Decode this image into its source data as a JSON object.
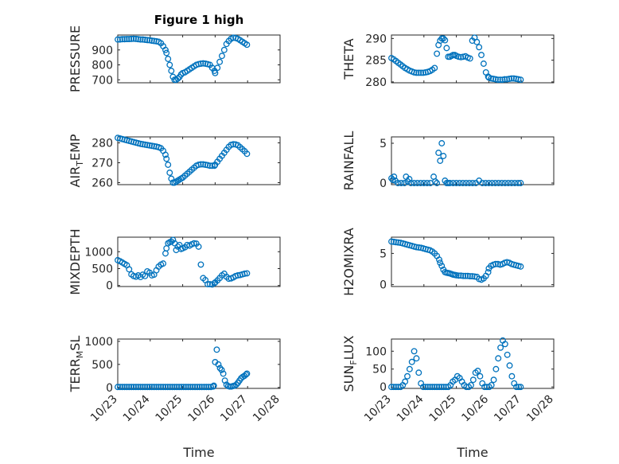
{
  "colors": {
    "marker": "#0072BD",
    "axis": "#262626",
    "grid": "#c8c8c8"
  },
  "xticks": [
    "10/23",
    "10/24",
    "10/25",
    "10/26",
    "10/27",
    "10/28"
  ],
  "xlabel": "Time",
  "chart_data": [
    {
      "type": "scatter",
      "title": "Figure 1 high",
      "ylabel": "PRESSURE",
      "ylabel_sub": "",
      "ylabel_tail": "",
      "ylim": [
        680,
        1000
      ],
      "yticks": [
        700,
        800,
        900
      ],
      "yticklabels": [
        "700",
        "800",
        "900"
      ],
      "grid": true,
      "x": [
        0,
        0.07,
        0.14,
        0.21,
        0.28,
        0.35,
        0.42,
        0.49,
        0.56,
        0.63,
        0.7,
        0.77,
        0.84,
        0.91,
        0.98,
        1.05,
        1.12,
        1.19,
        1.26,
        1.33,
        1.4,
        1.47,
        1.5,
        1.55,
        1.6,
        1.65,
        1.7,
        1.75,
        1.8,
        1.85,
        1.9,
        1.95,
        2.0,
        2.07,
        2.14,
        2.21,
        2.28,
        2.35,
        2.42,
        2.49,
        2.56,
        2.63,
        2.7,
        2.77,
        2.84,
        2.91,
        2.98,
        3.0,
        3.07,
        3.14,
        3.21,
        3.28,
        3.35,
        3.42,
        3.49,
        3.56,
        3.63,
        3.7,
        3.77,
        3.84,
        3.91,
        3.98
      ],
      "y": [
        970,
        970,
        972,
        972,
        973,
        973,
        974,
        975,
        974,
        972,
        970,
        970,
        968,
        966,
        965,
        962,
        960,
        958,
        955,
        945,
        925,
        900,
        880,
        840,
        800,
        760,
        720,
        700,
        700,
        708,
        718,
        735,
        745,
        750,
        760,
        770,
        780,
        790,
        800,
        805,
        808,
        810,
        808,
        805,
        800,
        780,
        760,
        745,
        780,
        820,
        860,
        900,
        940,
        960,
        975,
        982,
        980,
        975,
        965,
        955,
        945,
        935
      ]
    },
    {
      "type": "scatter",
      "title": "",
      "ylabel": "THETA",
      "ylabel_sub": "",
      "ylabel_tail": "",
      "ylim": [
        279.8,
        290.8
      ],
      "yticks": [
        280,
        285,
        290
      ],
      "yticklabels": [
        "280",
        "285",
        "290"
      ],
      "grid": true,
      "x": [
        0,
        0.07,
        0.14,
        0.21,
        0.28,
        0.35,
        0.42,
        0.49,
        0.56,
        0.63,
        0.7,
        0.77,
        0.84,
        0.91,
        0.98,
        1.05,
        1.12,
        1.19,
        1.26,
        1.33,
        1.4,
        1.45,
        1.5,
        1.55,
        1.6,
        1.65,
        1.7,
        1.75,
        1.8,
        1.85,
        1.9,
        1.95,
        2.0,
        2.07,
        2.14,
        2.21,
        2.28,
        2.35,
        2.42,
        2.49,
        2.56,
        2.63,
        2.7,
        2.77,
        2.84,
        2.91,
        2.98,
        3.0,
        3.07,
        3.14,
        3.21,
        3.28,
        3.35,
        3.42,
        3.49,
        3.56,
        3.63,
        3.7,
        3.77,
        3.84,
        3.91,
        3.98
      ],
      "y": [
        285.5,
        285.2,
        284.8,
        284.4,
        284,
        283.6,
        283.2,
        282.9,
        282.6,
        282.4,
        282.2,
        282.1,
        282.1,
        282.1,
        282.1,
        282.2,
        282.3,
        282.5,
        282.8,
        283.2,
        286.5,
        288.5,
        289.5,
        290,
        290,
        289.6,
        287.8,
        285.8,
        285.8,
        286,
        286.2,
        286.2,
        286,
        285.8,
        285.7,
        285.8,
        285.9,
        285.6,
        285.4,
        289.5,
        290.2,
        289.2,
        288,
        286.2,
        284.2,
        282.2,
        281.2,
        281,
        280.8,
        280.7,
        280.6,
        280.5,
        280.5,
        280.5,
        280.6,
        280.6,
        280.7,
        280.8,
        280.8,
        280.7,
        280.6,
        280.5
      ]
    },
    {
      "type": "scatter",
      "title": "",
      "ylabel": "AIR",
      "ylabel_sub": "T",
      "ylabel_tail": "EMP",
      "ylim": [
        259,
        283
      ],
      "yticks": [
        260,
        270,
        280
      ],
      "yticklabels": [
        "260",
        "270",
        "280"
      ],
      "grid": true,
      "x": [
        0,
        0.07,
        0.14,
        0.21,
        0.28,
        0.35,
        0.42,
        0.49,
        0.56,
        0.63,
        0.7,
        0.77,
        0.84,
        0.91,
        0.98,
        1.05,
        1.12,
        1.19,
        1.26,
        1.33,
        1.4,
        1.47,
        1.5,
        1.55,
        1.6,
        1.65,
        1.7,
        1.75,
        1.8,
        1.85,
        1.9,
        1.95,
        2.0,
        2.07,
        2.14,
        2.21,
        2.28,
        2.35,
        2.42,
        2.49,
        2.56,
        2.63,
        2.7,
        2.77,
        2.84,
        2.91,
        2.98,
        3.0,
        3.07,
        3.14,
        3.21,
        3.28,
        3.35,
        3.42,
        3.49,
        3.56,
        3.63,
        3.7,
        3.77,
        3.84,
        3.91,
        3.98
      ],
      "y": [
        282.5,
        282.2,
        281.9,
        281.6,
        281.3,
        281,
        280.7,
        280.4,
        280.1,
        279.8,
        279.5,
        279.3,
        279.1,
        278.9,
        278.7,
        278.5,
        278.3,
        278.1,
        277.8,
        277.3,
        276,
        274,
        272,
        269,
        265,
        262,
        260,
        260,
        260.5,
        261,
        261.5,
        262,
        262.5,
        263.5,
        264.5,
        265.5,
        266.5,
        267.5,
        268.5,
        269,
        269.2,
        269.2,
        269,
        268.8,
        268.5,
        268.5,
        268.5,
        269,
        270.5,
        272,
        273.5,
        275,
        276.5,
        278,
        279,
        279.3,
        279.2,
        278.8,
        277.8,
        276.8,
        275.8,
        274.5
      ]
    },
    {
      "type": "scatter",
      "title": "",
      "ylabel": "RAINFALL",
      "ylabel_sub": "",
      "ylabel_tail": "",
      "ylim": [
        -0.2,
        5.8
      ],
      "yticks": [
        0,
        5
      ],
      "yticklabels": [
        "0",
        "5"
      ],
      "grid": true,
      "x": [
        0,
        0.04,
        0.08,
        0.12,
        0.2,
        0.3,
        0.4,
        0.45,
        0.5,
        0.55,
        0.6,
        0.7,
        0.8,
        0.9,
        1.0,
        1.1,
        1.2,
        1.3,
        1.35,
        1.4,
        1.45,
        1.5,
        1.55,
        1.6,
        1.65,
        1.7,
        1.75,
        1.8,
        1.9,
        2.0,
        2.1,
        2.2,
        2.3,
        2.4,
        2.5,
        2.6,
        2.7,
        2.8,
        2.9,
        3.0,
        3.1,
        3.2,
        3.3,
        3.4,
        3.5,
        3.6,
        3.7,
        3.8,
        3.9,
        3.98
      ],
      "y": [
        0.6,
        0.4,
        0.8,
        0.3,
        0,
        0,
        0,
        0.8,
        0.2,
        0.5,
        0,
        0,
        0,
        0,
        0,
        0,
        0,
        0.8,
        0.2,
        0,
        3.8,
        2.8,
        5.0,
        3.4,
        0.3,
        0,
        0,
        0,
        0,
        0,
        0,
        0,
        0,
        0,
        0,
        0,
        0.3,
        0,
        0,
        0,
        0,
        0,
        0,
        0,
        0,
        0,
        0,
        0,
        0,
        0
      ]
    },
    {
      "type": "scatter",
      "title": "",
      "ylabel": "MIXDEPTH",
      "ylabel_sub": "",
      "ylabel_tail": "",
      "ylim": [
        -30,
        1430
      ],
      "yticks": [
        0,
        500,
        1000
      ],
      "yticklabels": [
        "0",
        "500",
        "1000"
      ],
      "grid": true,
      "x": [
        0,
        0.07,
        0.14,
        0.21,
        0.28,
        0.35,
        0.42,
        0.49,
        0.56,
        0.63,
        0.7,
        0.77,
        0.84,
        0.91,
        0.98,
        1.05,
        1.12,
        1.19,
        1.26,
        1.33,
        1.4,
        1.47,
        1.5,
        1.55,
        1.6,
        1.65,
        1.7,
        1.75,
        1.8,
        1.85,
        1.9,
        1.95,
        2.0,
        2.07,
        2.14,
        2.21,
        2.28,
        2.35,
        2.42,
        2.49,
        2.56,
        2.63,
        2.7,
        2.77,
        2.84,
        2.91,
        2.98,
        3.0,
        3.07,
        3.14,
        3.21,
        3.28,
        3.35,
        3.42,
        3.49,
        3.56,
        3.63,
        3.7,
        3.77,
        3.84,
        3.91,
        3.98
      ],
      "y": [
        750,
        720,
        680,
        640,
        600,
        480,
        330,
        280,
        260,
        300,
        250,
        320,
        280,
        420,
        380,
        300,
        320,
        450,
        560,
        620,
        650,
        950,
        1100,
        1250,
        1280,
        1300,
        1350,
        1250,
        1050,
        1150,
        1200,
        1080,
        1100,
        1130,
        1200,
        1180,
        1220,
        1250,
        1240,
        1150,
        620,
        220,
        160,
        40,
        40,
        30,
        70,
        90,
        150,
        220,
        300,
        350,
        260,
        200,
        210,
        240,
        280,
        300,
        310,
        330,
        350,
        360
      ]
    },
    {
      "type": "scatter",
      "title": "",
      "ylabel": "H2OMIXRA",
      "ylabel_sub": "",
      "ylabel_tail": "",
      "ylim": [
        -0.3,
        7.6
      ],
      "yticks": [
        0,
        5
      ],
      "yticklabels": [
        "0",
        "5"
      ],
      "grid": true,
      "x": [
        0,
        0.07,
        0.14,
        0.21,
        0.28,
        0.35,
        0.42,
        0.49,
        0.56,
        0.63,
        0.7,
        0.77,
        0.84,
        0.91,
        0.98,
        1.05,
        1.12,
        1.19,
        1.26,
        1.33,
        1.4,
        1.47,
        1.5,
        1.55,
        1.6,
        1.65,
        1.7,
        1.75,
        1.8,
        1.85,
        1.9,
        1.95,
        2.0,
        2.07,
        2.14,
        2.21,
        2.28,
        2.35,
        2.42,
        2.49,
        2.56,
        2.63,
        2.7,
        2.77,
        2.84,
        2.91,
        2.98,
        3.0,
        3.07,
        3.14,
        3.21,
        3.28,
        3.35,
        3.42,
        3.49,
        3.56,
        3.63,
        3.7,
        3.77,
        3.84,
        3.91,
        3.98
      ],
      "y": [
        6.9,
        6.85,
        6.8,
        6.75,
        6.7,
        6.6,
        6.5,
        6.4,
        6.3,
        6.2,
        6.1,
        6.0,
        5.95,
        5.9,
        5.8,
        5.7,
        5.6,
        5.5,
        5.3,
        5.0,
        4.6,
        4.0,
        3.5,
        3.0,
        2.4,
        2.0,
        1.9,
        1.85,
        1.8,
        1.7,
        1.6,
        1.55,
        1.5,
        1.45,
        1.45,
        1.4,
        1.4,
        1.4,
        1.35,
        1.35,
        1.3,
        1.25,
        0.9,
        0.8,
        1.0,
        1.4,
        2.0,
        2.6,
        3.0,
        3.2,
        3.3,
        3.3,
        3.2,
        3.3,
        3.5,
        3.6,
        3.5,
        3.3,
        3.2,
        3.1,
        3.0,
        2.9
      ]
    },
    {
      "type": "scatter",
      "title": "",
      "ylabel": "TERR",
      "ylabel_sub": "M",
      "ylabel_tail": "SL",
      "ylim": [
        -20,
        1050
      ],
      "yticks": [
        0,
        500,
        1000
      ],
      "yticklabels": [
        "0",
        "500",
        "1000"
      ],
      "grid": true,
      "x": [
        0,
        0.07,
        0.14,
        0.21,
        0.28,
        0.35,
        0.42,
        0.49,
        0.56,
        0.63,
        0.7,
        0.77,
        0.84,
        0.91,
        0.98,
        1.05,
        1.12,
        1.19,
        1.26,
        1.33,
        1.4,
        1.47,
        1.54,
        1.61,
        1.68,
        1.75,
        1.82,
        1.89,
        1.96,
        2.03,
        2.1,
        2.17,
        2.24,
        2.31,
        2.38,
        2.45,
        2.52,
        2.59,
        2.66,
        2.73,
        2.8,
        2.87,
        2.94,
        2.96,
        3.0,
        3.05,
        3.1,
        3.15,
        3.2,
        3.25,
        3.3,
        3.35,
        3.4,
        3.45,
        3.5,
        3.55,
        3.6,
        3.65,
        3.7,
        3.75,
        3.8,
        3.85,
        3.9,
        3.95,
        3.98
      ],
      "y": [
        10,
        10,
        10,
        10,
        10,
        10,
        10,
        10,
        10,
        10,
        10,
        10,
        10,
        10,
        10,
        10,
        10,
        10,
        10,
        10,
        10,
        10,
        10,
        10,
        10,
        10,
        10,
        10,
        10,
        10,
        10,
        10,
        10,
        10,
        10,
        10,
        10,
        10,
        10,
        10,
        10,
        10,
        20,
        40,
        550,
        820,
        500,
        420,
        380,
        300,
        150,
        60,
        30,
        20,
        20,
        30,
        40,
        60,
        100,
        150,
        200,
        230,
        250,
        280,
        300
      ]
    },
    {
      "type": "scatter",
      "title": "",
      "ylabel": "SUN",
      "ylabel_sub": "F",
      "ylabel_tail": "LUX",
      "ylim": [
        -4,
        134
      ],
      "yticks": [
        0,
        50,
        100
      ],
      "yticklabels": [
        "0",
        "50",
        "100"
      ],
      "grid": true,
      "x": [
        0,
        0.07,
        0.14,
        0.21,
        0.28,
        0.35,
        0.42,
        0.49,
        0.56,
        0.63,
        0.7,
        0.77,
        0.84,
        0.91,
        0.98,
        1.05,
        1.12,
        1.19,
        1.26,
        1.33,
        1.4,
        1.47,
        1.54,
        1.61,
        1.68,
        1.75,
        1.82,
        1.89,
        1.96,
        2.03,
        2.1,
        2.17,
        2.24,
        2.31,
        2.38,
        2.45,
        2.52,
        2.59,
        2.66,
        2.73,
        2.8,
        2.87,
        2.94,
        3.01,
        3.08,
        3.15,
        3.22,
        3.29,
        3.36,
        3.43,
        3.5,
        3.57,
        3.64,
        3.71,
        3.78,
        3.85,
        3.92,
        3.98
      ],
      "y": [
        0,
        0,
        0,
        0,
        0,
        5,
        15,
        30,
        50,
        70,
        100,
        80,
        40,
        10,
        0,
        0,
        0,
        0,
        0,
        0,
        0,
        0,
        0,
        0,
        0,
        0,
        5,
        15,
        20,
        30,
        25,
        15,
        5,
        0,
        0,
        5,
        20,
        40,
        45,
        30,
        10,
        0,
        0,
        0,
        5,
        20,
        50,
        80,
        110,
        130,
        120,
        90,
        60,
        30,
        10,
        0,
        0,
        0
      ]
    }
  ]
}
